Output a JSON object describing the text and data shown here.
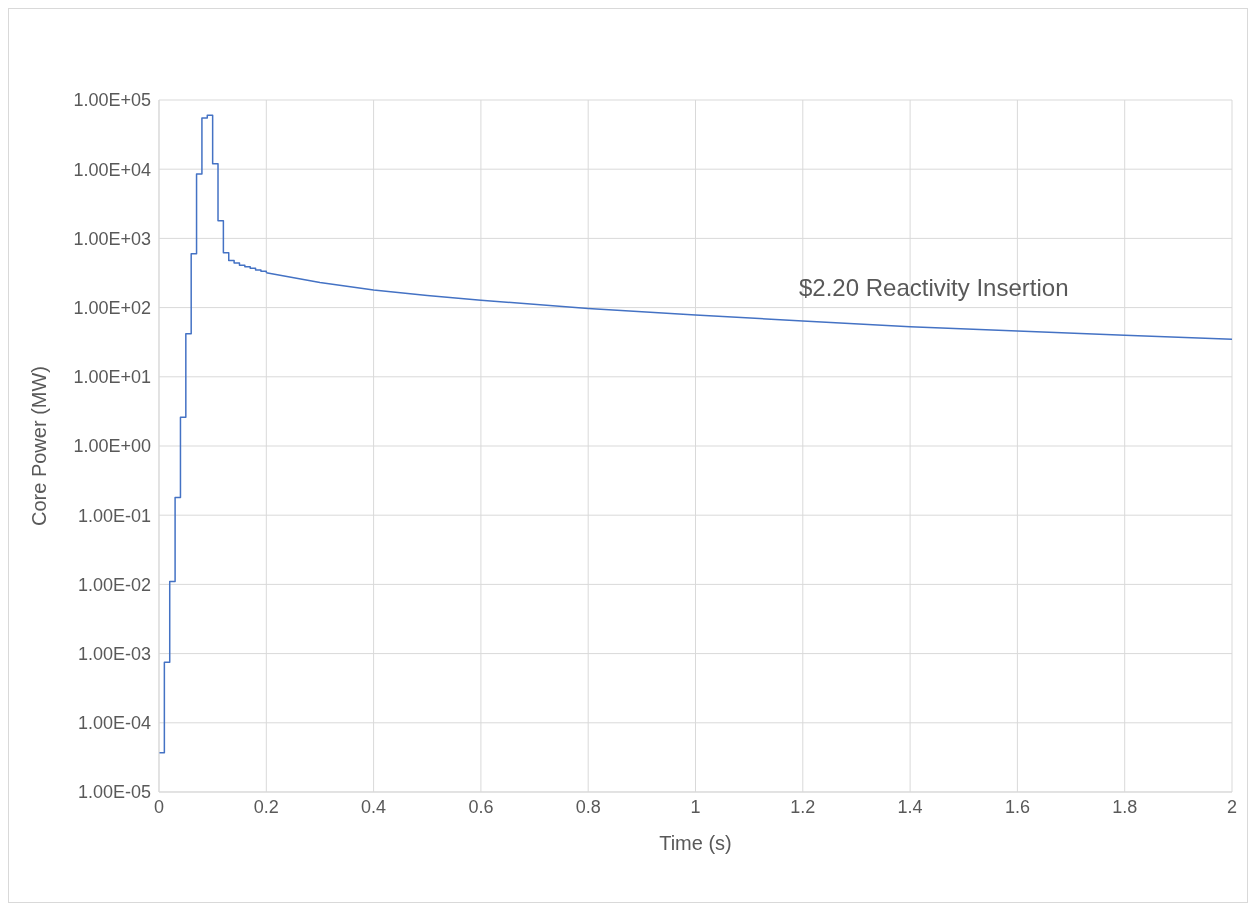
{
  "chart_data": {
    "type": "line",
    "xlabel": "Time (s)",
    "ylabel": "Core Power (MW)",
    "annotations": [
      "$2.20 Reactivity Insertion"
    ],
    "series": [
      {
        "type": "step",
        "color": "#4472c4",
        "x": [
          0,
          0.01,
          0.02,
          0.03,
          0.04,
          0.05,
          0.06,
          0.07,
          0.08,
          0.09,
          0.1,
          0.11,
          0.12,
          0.13,
          0.14,
          0.15,
          0.16,
          0.17,
          0.18,
          0.19,
          0.2
        ],
        "values": [
          3.7e-05,
          0.00075,
          0.011,
          0.18,
          2.6,
          42,
          600,
          8500,
          55000,
          60000,
          12000,
          1800,
          620,
          480,
          440,
          410,
          390,
          370,
          350,
          335,
          320
        ]
      },
      {
        "color": "#4472c4",
        "x": [
          0.2,
          0.3,
          0.4,
          0.5,
          0.6,
          0.8,
          1.0,
          1.2,
          1.4,
          1.6,
          1.8,
          2.0
        ],
        "values": [
          320,
          230,
          180,
          150,
          128,
          97,
          78,
          64,
          53,
          46,
          40,
          35
        ]
      }
    ],
    "xlim": [
      0,
      2
    ],
    "xticks": [
      0,
      0.2,
      0.4,
      0.6,
      0.8,
      1,
      1.2,
      1.4,
      1.6,
      1.8,
      2
    ],
    "log": "y",
    "ylim": [
      1e-05,
      100000
    ],
    "yticks": [
      {
        "value": 1e-05,
        "label": "1.00E-05"
      },
      {
        "value": 0.0001,
        "label": "1.00E-04"
      },
      {
        "value": 0.001,
        "label": "1.00E-03"
      },
      {
        "value": 0.01,
        "label": "1.00E-02"
      },
      {
        "value": 0.1,
        "label": "1.00E-01"
      },
      {
        "value": 1,
        "label": "1.00E+00"
      },
      {
        "value": 10,
        "label": "1.00E+01"
      },
      {
        "value": 100,
        "label": "1.00E+02"
      },
      {
        "value": 1000,
        "label": "1.00E+03"
      },
      {
        "value": 10000,
        "label": "1.00E+04"
      },
      {
        "value": 100000,
        "label": "1.00E+05"
      }
    ],
    "grid": true,
    "marker": "none"
  }
}
